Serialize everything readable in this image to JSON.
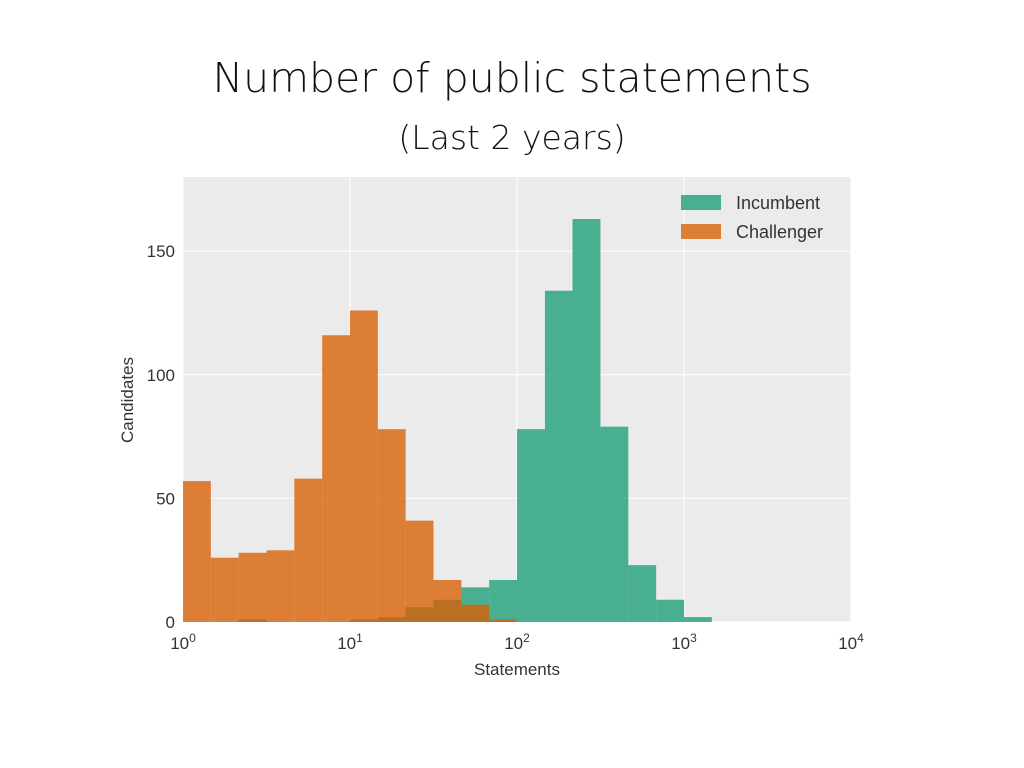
{
  "slide": {
    "title": "Number of public statements",
    "subtitle": "(Last 2 years)"
  },
  "chart_data": {
    "type": "histogram",
    "xlabel": "Statements",
    "ylabel": "Candidates",
    "x_scale": "log",
    "xlim": [
      1,
      10000
    ],
    "ylim": [
      0,
      180
    ],
    "x_ticks": [
      {
        "value": 1,
        "base": "10",
        "exp": "0"
      },
      {
        "value": 10,
        "base": "10",
        "exp": "1"
      },
      {
        "value": 100,
        "base": "10",
        "exp": "2"
      },
      {
        "value": 1000,
        "base": "10",
        "exp": "3"
      },
      {
        "value": 10000,
        "base": "10",
        "exp": "4"
      }
    ],
    "y_ticks": [
      0,
      50,
      100,
      150
    ],
    "grid": true,
    "background": "#ebebeb",
    "legend_position": "top-right",
    "series": [
      {
        "name": "Incumbent",
        "color": "#1b9e77",
        "bins": [
          {
            "x0": 2.15,
            "x1": 3.16,
            "count": 1
          },
          {
            "x0": 10.0,
            "x1": 14.7,
            "count": 1
          },
          {
            "x0": 14.7,
            "x1": 21.5,
            "count": 2
          },
          {
            "x0": 21.5,
            "x1": 31.6,
            "count": 6
          },
          {
            "x0": 31.6,
            "x1": 46.4,
            "count": 9
          },
          {
            "x0": 46.4,
            "x1": 68.1,
            "count": 14
          },
          {
            "x0": 68.1,
            "x1": 100,
            "count": 17
          },
          {
            "x0": 100,
            "x1": 147,
            "count": 78
          },
          {
            "x0": 147,
            "x1": 215,
            "count": 134
          },
          {
            "x0": 215,
            "x1": 316,
            "count": 163
          },
          {
            "x0": 316,
            "x1": 464,
            "count": 79
          },
          {
            "x0": 464,
            "x1": 681,
            "count": 23
          },
          {
            "x0": 681,
            "x1": 1000,
            "count": 9
          },
          {
            "x0": 1000,
            "x1": 1468,
            "count": 2
          }
        ]
      },
      {
        "name": "Challenger",
        "color": "#d95f02",
        "bins": [
          {
            "x0": 1.0,
            "x1": 1.468,
            "count": 57
          },
          {
            "x0": 1.468,
            "x1": 2.154,
            "count": 26
          },
          {
            "x0": 2.154,
            "x1": 3.162,
            "count": 28
          },
          {
            "x0": 3.162,
            "x1": 4.642,
            "count": 29
          },
          {
            "x0": 4.642,
            "x1": 6.813,
            "count": 58
          },
          {
            "x0": 6.813,
            "x1": 10.0,
            "count": 116
          },
          {
            "x0": 10.0,
            "x1": 14.68,
            "count": 126
          },
          {
            "x0": 14.68,
            "x1": 21.54,
            "count": 78
          },
          {
            "x0": 21.54,
            "x1": 31.62,
            "count": 41
          },
          {
            "x0": 31.62,
            "x1": 46.42,
            "count": 17
          },
          {
            "x0": 46.42,
            "x1": 68.13,
            "count": 7
          },
          {
            "x0": 68.13,
            "x1": 100.0,
            "count": 1
          }
        ]
      }
    ]
  }
}
